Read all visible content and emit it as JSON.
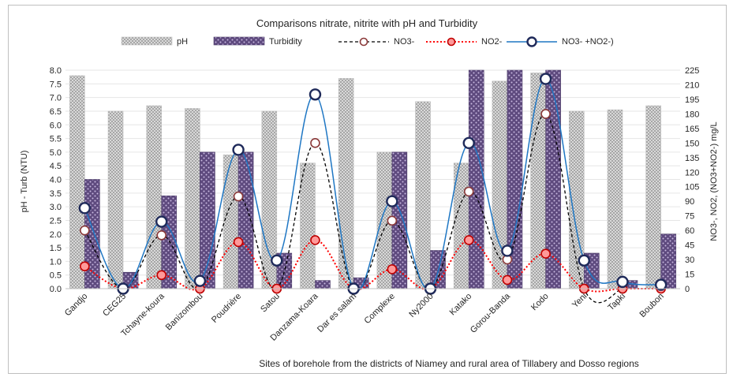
{
  "chart_data": {
    "type": "bar",
    "title": "Comparisons nitrate, nitrite with pH and Turbidity",
    "xlabel": "Sites of borehole from the districts of Niamey and rural area of Tillabery and Dosso regions",
    "ylabel_left": "pH - Turb (NTU)",
    "ylabel_right": "NO3-, NO2, (NO3+NO2-) mg/L",
    "ylim_left": [
      0,
      8
    ],
    "ylim_right": [
      0,
      225
    ],
    "yticks_left": [
      "0.0",
      "0.5",
      "1.0",
      "1.5",
      "2.0",
      "2.5",
      "3.0",
      "3.5",
      "4.0",
      "4.5",
      "5.0",
      "5.5",
      "6.0",
      "6.5",
      "7.0",
      "7.5",
      "8.0"
    ],
    "yticks_right": [
      "0",
      "15",
      "30",
      "45",
      "60",
      "75",
      "90",
      "105",
      "120",
      "135",
      "150",
      "165",
      "180",
      "195",
      "210",
      "225"
    ],
    "legend_position": "top",
    "categories": [
      "Gandjo",
      "CEG25",
      "Tchayne-koura",
      "Banizombou",
      "Poudrière",
      "Satou",
      "Danzama-Koara",
      "Dar es salam",
      "Complexe",
      "Ny2000",
      "Katako",
      "Gorou-Banda",
      "Kodo",
      "Yeni",
      "Tapki",
      "Boubon"
    ],
    "bar_series": [
      {
        "name": "pH",
        "axis": "left",
        "color": "#c8c8c8",
        "values": [
          7.8,
          6.5,
          6.7,
          6.6,
          4.9,
          6.5,
          4.6,
          7.7,
          5.0,
          6.85,
          4.6,
          7.6,
          7.9,
          6.5,
          6.55,
          6.7
        ]
      },
      {
        "name": "Turbidity",
        "axis": "left",
        "color": "#5e4a7e",
        "values": [
          4.0,
          0.6,
          3.4,
          5.0,
          5.0,
          1.3,
          0.3,
          0.4,
          5.0,
          1.4,
          8.0,
          8.0,
          8.0,
          1.3,
          0.3,
          2.0
        ]
      }
    ],
    "line_series": [
      {
        "name": "NO3-",
        "axis": "right",
        "color": "#000000",
        "marker_fill": "#ffffff",
        "marker_edge": "#8b3a3a",
        "style": "dashed",
        "values": [
          60,
          0,
          55,
          0,
          95,
          0,
          150,
          0,
          70,
          0,
          100,
          30,
          180,
          0,
          0,
          null
        ]
      },
      {
        "name": "NO2-",
        "axis": "right",
        "color": "#ff0000",
        "marker_fill": "#ff9999",
        "marker_edge": "#c00000",
        "style": "dotted",
        "values": [
          23,
          0,
          14,
          0,
          48,
          0,
          50,
          0,
          20,
          0,
          50,
          9,
          36,
          0,
          0,
          0
        ]
      },
      {
        "name": "NO3- +NO2-)",
        "axis": "right",
        "color": "#1f77c4",
        "marker_fill": "#ffffff",
        "marker_edge": "#1f2a5a",
        "style": "smooth",
        "values": [
          83,
          0,
          69,
          8,
          143,
          29,
          200,
          0,
          90,
          0,
          150,
          39,
          216,
          29,
          7,
          4
        ]
      }
    ]
  }
}
